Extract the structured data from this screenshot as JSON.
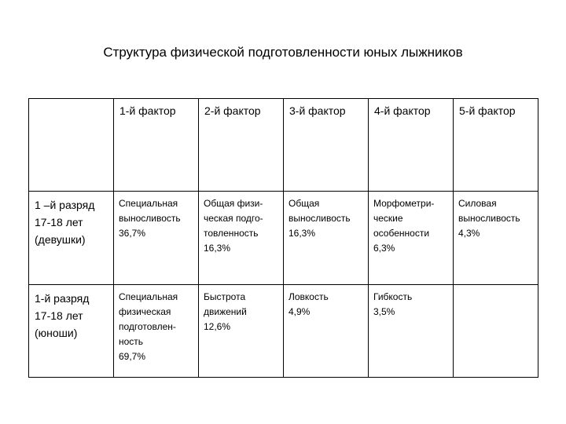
{
  "title": "Структура физической подготовленности юных лыжников",
  "table": {
    "headers": [
      "",
      "1-й фактор",
      "2-й фактор",
      "3-й фактор",
      "4-й фактор",
      "5-й фактор"
    ],
    "rows": [
      {
        "label": [
          "1 –й разряд",
          "17-18 лет",
          "(девушки)"
        ],
        "cells": [
          [
            "Специальная",
            "выносливость",
            "36,7%"
          ],
          [
            "Общая физи-",
            "ческая подго-",
            "товленность",
            "16,3%"
          ],
          [
            "Общая",
            "выносливость",
            "16,3%"
          ],
          [
            "Морфометри-",
            "ческие",
            "особенности",
            "6,3%"
          ],
          [
            "Силовая",
            "выносливость",
            "4,3%"
          ]
        ]
      },
      {
        "label": [
          "1-й разряд",
          "17-18 лет",
          "(юноши)"
        ],
        "cells": [
          [
            "Специальная",
            "физическая",
            "подготовлен-",
            "ность",
            "69,7%"
          ],
          [
            "Быстрота",
            "движений",
            "12,6%"
          ],
          [
            "Ловкость",
            "4,9%"
          ],
          [
            "Гибкость",
            "3,5%"
          ],
          []
        ]
      }
    ]
  }
}
